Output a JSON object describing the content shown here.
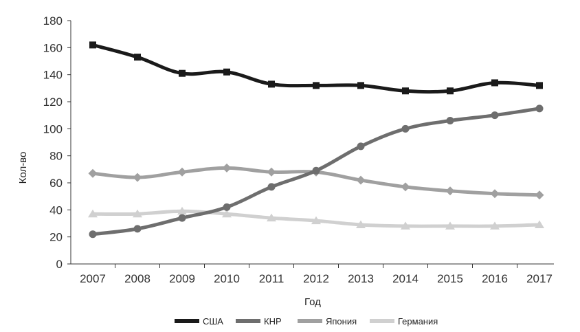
{
  "chart_data": {
    "type": "line",
    "xlabel": "Год",
    "ylabel": "Кол-во",
    "ylim": [
      0,
      180
    ],
    "yticks": [
      "0",
      "20",
      "40",
      "60",
      "80",
      "100",
      "120",
      "140",
      "160",
      "180"
    ],
    "categories": [
      "2007",
      "2008",
      "2009",
      "2010",
      "2011",
      "2012",
      "2013",
      "2014",
      "2015",
      "2016",
      "2017"
    ],
    "grid": false,
    "legend_position": "bottom",
    "series": [
      {
        "name": "США",
        "color": "#1a1a1a",
        "marker": "square",
        "values": [
          162,
          153,
          141,
          142,
          133,
          132,
          132,
          128,
          128,
          134,
          132
        ]
      },
      {
        "name": "КНР",
        "color": "#6e6e6e",
        "marker": "circle",
        "values": [
          22,
          26,
          34,
          42,
          57,
          69,
          87,
          100,
          106,
          110,
          115
        ]
      },
      {
        "name": "Япония",
        "color": "#a0a0a0",
        "marker": "diamond",
        "values": [
          67,
          64,
          68,
          71,
          68,
          68,
          62,
          57,
          54,
          52,
          51
        ]
      },
      {
        "name": "Германия",
        "color": "#d0d0d0",
        "marker": "triangle",
        "values": [
          37,
          37,
          39,
          37,
          34,
          32,
          29,
          28,
          28,
          28,
          29
        ]
      }
    ]
  }
}
